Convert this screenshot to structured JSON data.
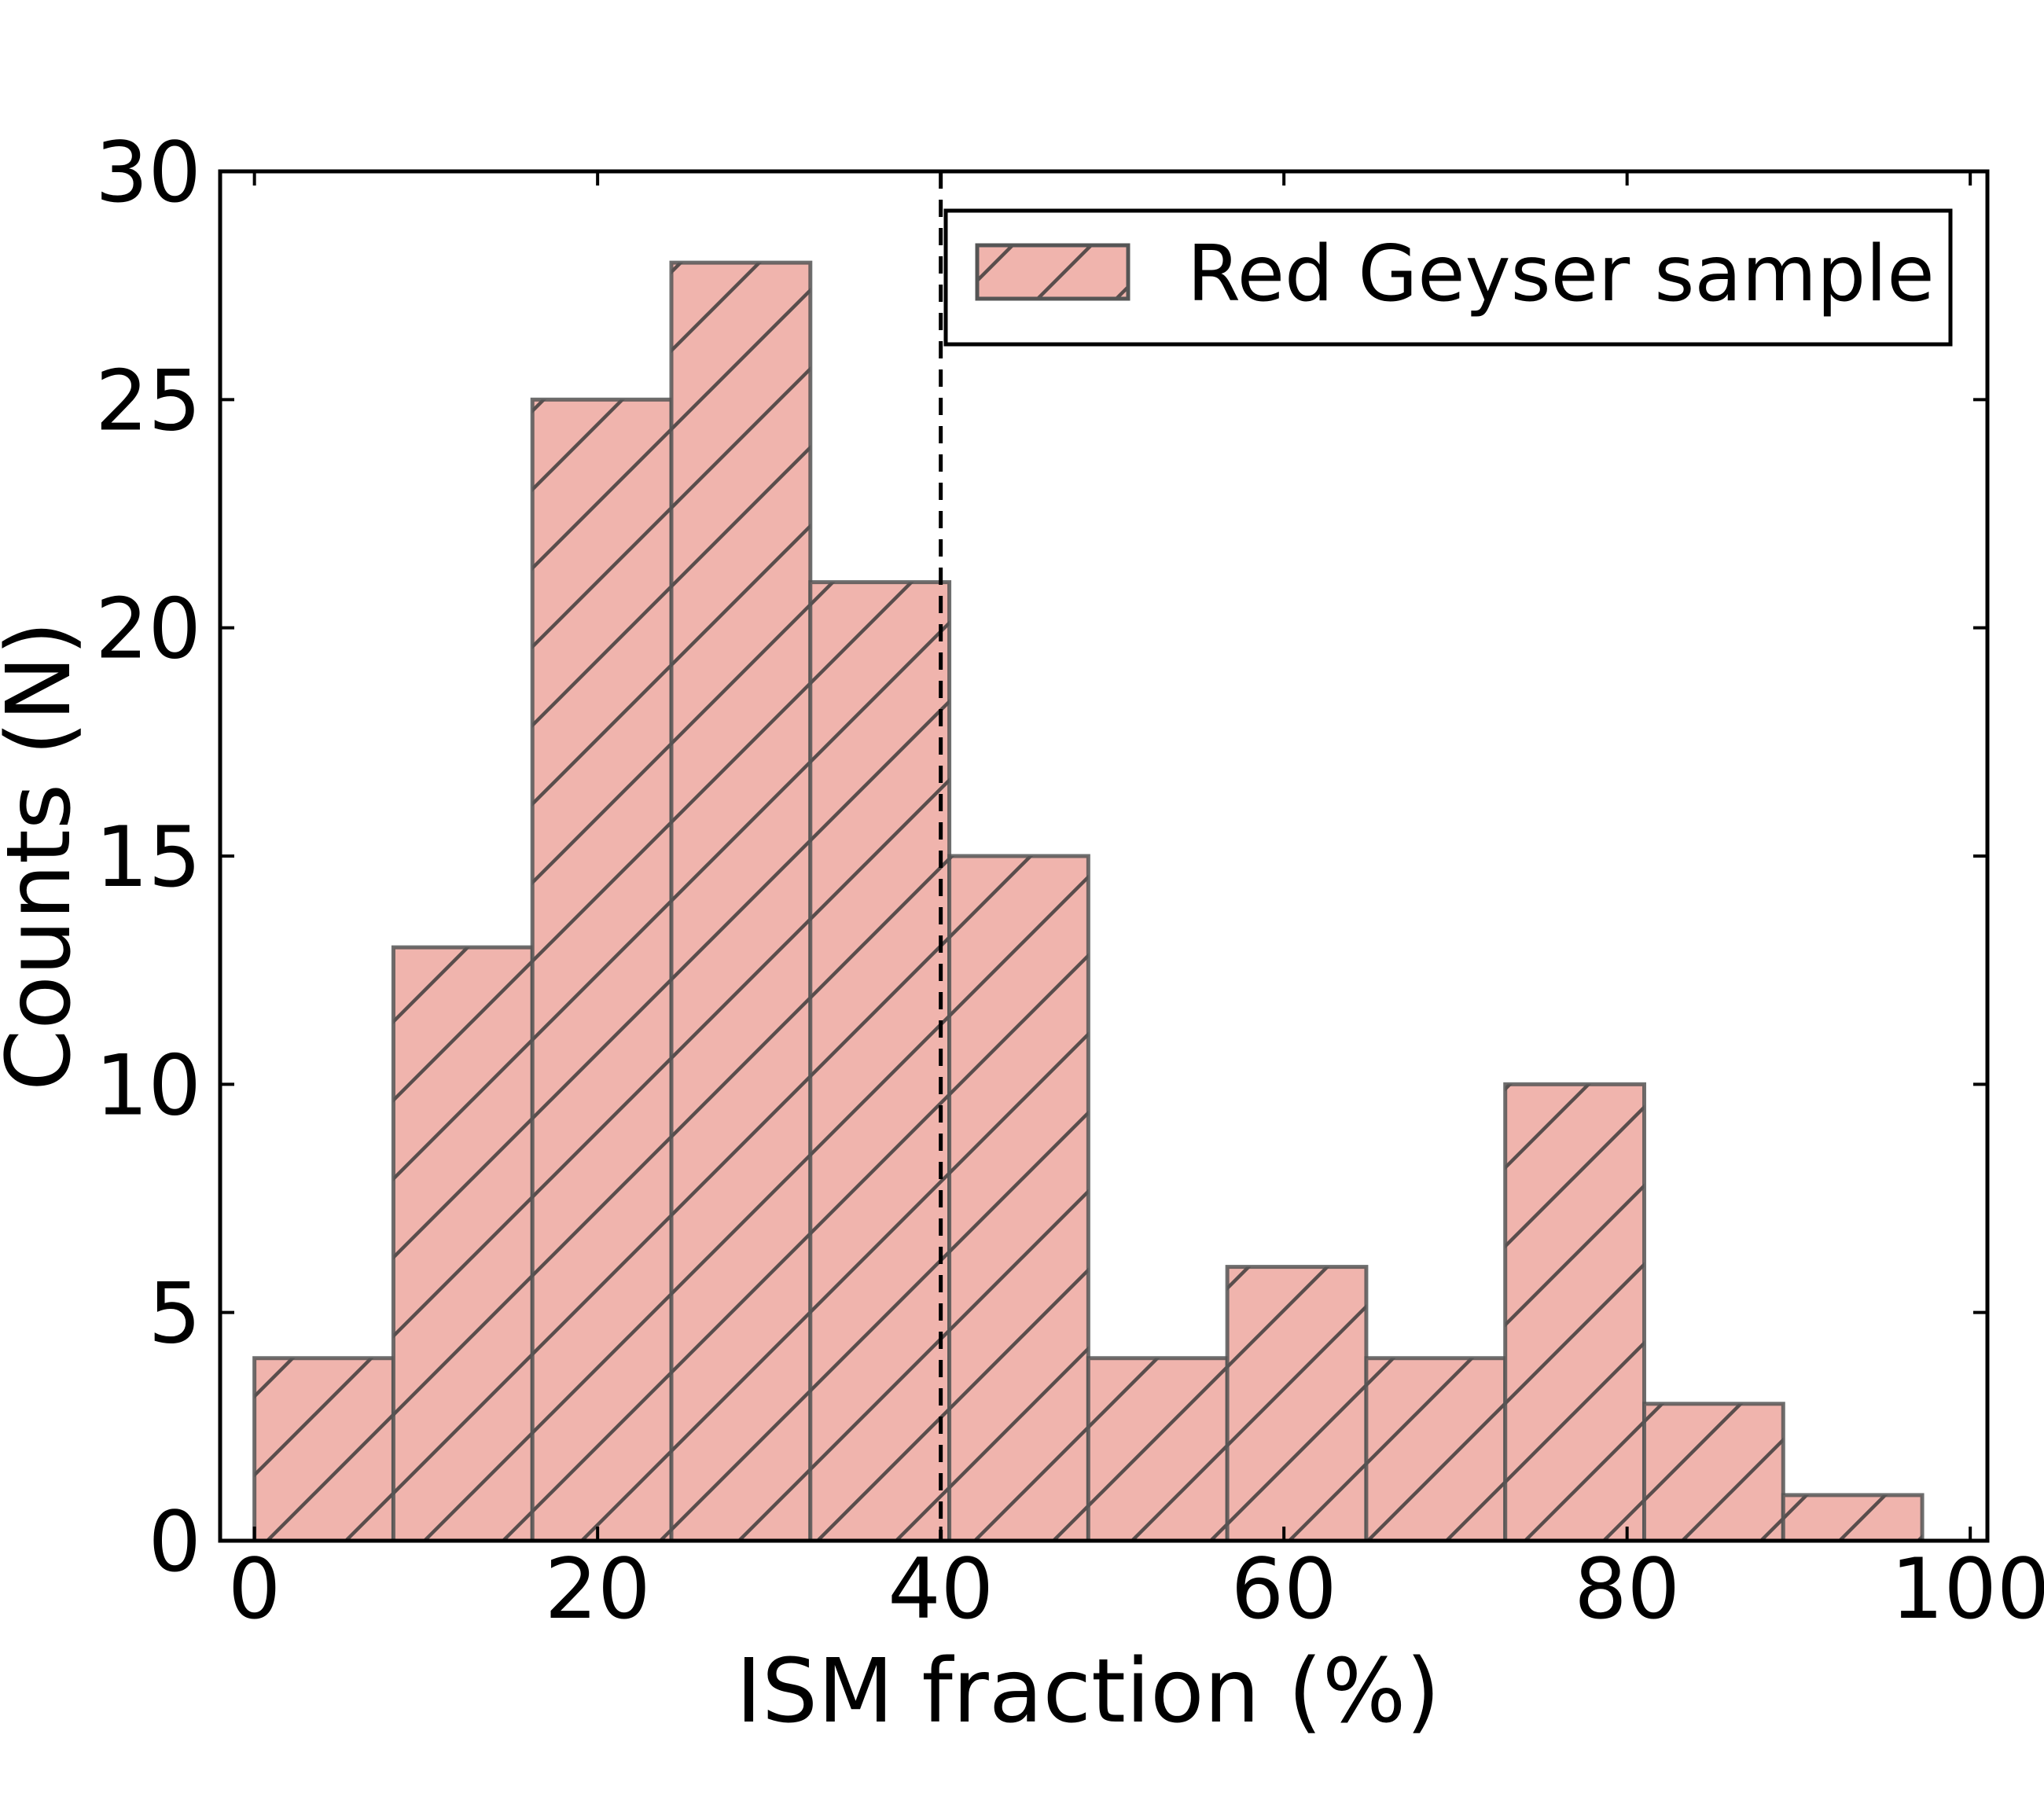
{
  "chart_data": {
    "type": "bar",
    "subtype": "histogram",
    "title": "",
    "xlabel": "ISM fraction (%)",
    "ylabel": "Counts (N)",
    "xlim": [
      -2,
      101
    ],
    "ylim": [
      0,
      30
    ],
    "xticks": [
      0,
      20,
      40,
      60,
      80,
      100
    ],
    "yticks": [
      0,
      5,
      10,
      15,
      20,
      25,
      30
    ],
    "bin_edges": [
      0,
      8.1,
      16.2,
      24.3,
      32.4,
      40.5,
      48.6,
      56.7,
      64.8,
      72.9,
      81.0,
      89.1,
      97.2
    ],
    "series": [
      {
        "name": "Red Geyser sample",
        "values": [
          4,
          13,
          25,
          28,
          21,
          15,
          4,
          6,
          4,
          10,
          3,
          1
        ],
        "fill": "#f0b4ad",
        "edge": "#555555",
        "hatch": "/"
      }
    ],
    "reference_lines": [
      {
        "orientation": "vertical",
        "x": 40,
        "style": "dashed",
        "color": "#000000"
      }
    ],
    "legend": {
      "position": "top-right",
      "entries": [
        "Red Geyser sample"
      ]
    },
    "grid": false
  }
}
